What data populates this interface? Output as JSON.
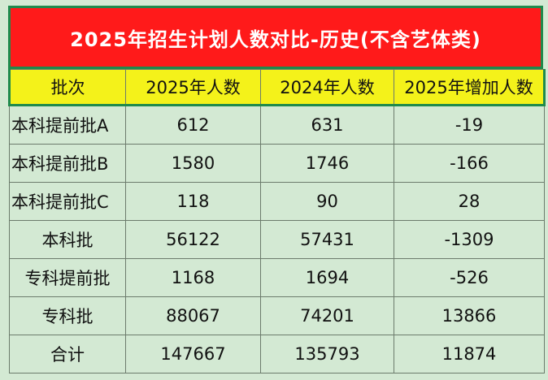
{
  "title": "2025年招生计划人数对比-历史(不含艺体类)",
  "headers": [
    "批次",
    "2025年人数",
    "2024年人数",
    "2025年增加人数"
  ],
  "rows": [
    {
      "batch": "本科提前批A",
      "y2025": "612",
      "y2024": "631",
      "diff": "-19"
    },
    {
      "batch": "本科提前批B",
      "y2025": "1580",
      "y2024": "1746",
      "diff": "-166"
    },
    {
      "batch": "本科提前批C",
      "y2025": "118",
      "y2024": "90",
      "diff": "28"
    },
    {
      "batch": "本科批",
      "y2025": "56122",
      "y2024": "57431",
      "diff": "-1309"
    },
    {
      "batch": "专科提前批",
      "y2025": "1168",
      "y2024": "1694",
      "diff": "-526"
    },
    {
      "batch": "专科批",
      "y2025": "88067",
      "y2024": "74201",
      "diff": "13866"
    },
    {
      "batch": "合计",
      "y2025": "147667",
      "y2024": "135793",
      "diff": "11874"
    }
  ],
  "colors": {
    "title_bg": "#ff1a1a",
    "header_bg": "#f4f21a",
    "cell_bg": "#d3e9d3",
    "accent_border": "#1f8a4c"
  }
}
